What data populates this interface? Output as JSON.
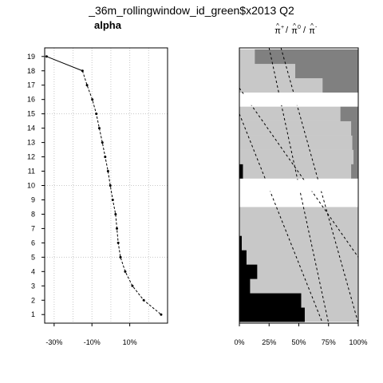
{
  "title": "_36m_rollingwindow_id_green$x2013 Q2",
  "chart_data": [
    {
      "type": "line",
      "title": "alpha",
      "y_ticks": [
        "1",
        "2",
        "3",
        "4",
        "5",
        "6",
        "7",
        "8",
        "9",
        "10",
        "11",
        "12",
        "13",
        "14",
        "15",
        "16",
        "17",
        "18",
        "19"
      ],
      "x_ticks": [
        "-30%",
        "-10%",
        "10%"
      ],
      "x_tick_values": [
        -30,
        -10,
        10
      ],
      "xlim": [
        -35,
        30
      ],
      "ylim": [
        0.4,
        19.6
      ],
      "grid": true,
      "series": [
        {
          "x": [
            26.6,
            17.4,
            11.4,
            7.6,
            5.1,
            3.9,
            3.2,
            2.5,
            1.0,
            -0.3,
            -1.5,
            -3.0,
            -4.5,
            -6.1,
            -7.7,
            -9.8,
            -12.6,
            -15.0,
            -34.0
          ],
          "y": [
            1,
            2,
            3,
            4,
            5,
            6,
            7,
            8,
            9,
            10,
            11,
            12,
            13,
            14,
            15,
            16,
            17,
            18,
            19
          ]
        }
      ]
    },
    {
      "type": "bar",
      "title": "π̂+ / π̂0 / π̂-",
      "x_ticks": [
        "0%",
        "25%",
        "50%",
        "75%",
        "100%"
      ],
      "x_tick_values": [
        0,
        25,
        50,
        75,
        100
      ],
      "categories": [
        "1",
        "2",
        "3",
        "4",
        "5",
        "6",
        "7",
        "8",
        "9",
        "10",
        "11",
        "12",
        "13",
        "14",
        "15",
        "16",
        "17",
        "18",
        "19"
      ],
      "colors": {
        "pi_minus": "#000000",
        "pi_zero": "#c8c8c8",
        "pi_plus": "#808080",
        "gap": "#ffffff",
        "dashed": "#000000"
      },
      "rows": [
        {
          "y": 1,
          "minus": 55,
          "zero": 45,
          "plus": 0
        },
        {
          "y": 2,
          "minus": 52,
          "zero": 48,
          "plus": 0
        },
        {
          "y": 3,
          "minus": 9,
          "zero": 91,
          "plus": 0
        },
        {
          "y": 4,
          "minus": 15,
          "zero": 85,
          "plus": 0
        },
        {
          "y": 5,
          "minus": 6,
          "zero": 94,
          "plus": 0
        },
        {
          "y": 6,
          "minus": 2,
          "zero": 98,
          "plus": 0
        },
        {
          "y": 7,
          "minus": 0,
          "zero": 100,
          "plus": 0
        },
        {
          "y": 8,
          "minus": 0,
          "zero": 100,
          "plus": 0
        },
        {
          "y": 11,
          "minus": 3,
          "zero": 91,
          "plus": 6
        },
        {
          "y": 12,
          "minus": 0,
          "zero": 96,
          "plus": 4
        },
        {
          "y": 13,
          "minus": 0,
          "zero": 95,
          "plus": 5
        },
        {
          "y": 14,
          "minus": 0,
          "zero": 94,
          "plus": 6
        },
        {
          "y": 15,
          "minus": 0,
          "zero": 85,
          "plus": 15
        },
        {
          "y": 17,
          "minus": 0,
          "zero": 70,
          "plus": 30
        },
        {
          "y": 18,
          "minus": 0,
          "zero": 47,
          "plus": 53
        },
        {
          "y": 19,
          "minus": 0,
          "zero": 13,
          "plus": 87
        }
      ],
      "gaps": [
        [
          9.6,
          10.4
        ],
        [
          15.6,
          16.4
        ]
      ],
      "dashed_lines": [
        {
          "x1": 25,
          "y1": 19.6,
          "x2": 75,
          "y2": 0.4
        },
        {
          "x1": 35,
          "y1": 19.6,
          "x2": 100,
          "y2": 0.4
        },
        {
          "x1": 0,
          "y1": 15.0,
          "x2": 70,
          "y2": 0.4
        },
        {
          "x1": 0,
          "y1": 16.8,
          "x2": 100,
          "y2": 5.0
        }
      ],
      "xlim": [
        0,
        100
      ],
      "ylim": [
        0.4,
        19.6
      ]
    }
  ]
}
